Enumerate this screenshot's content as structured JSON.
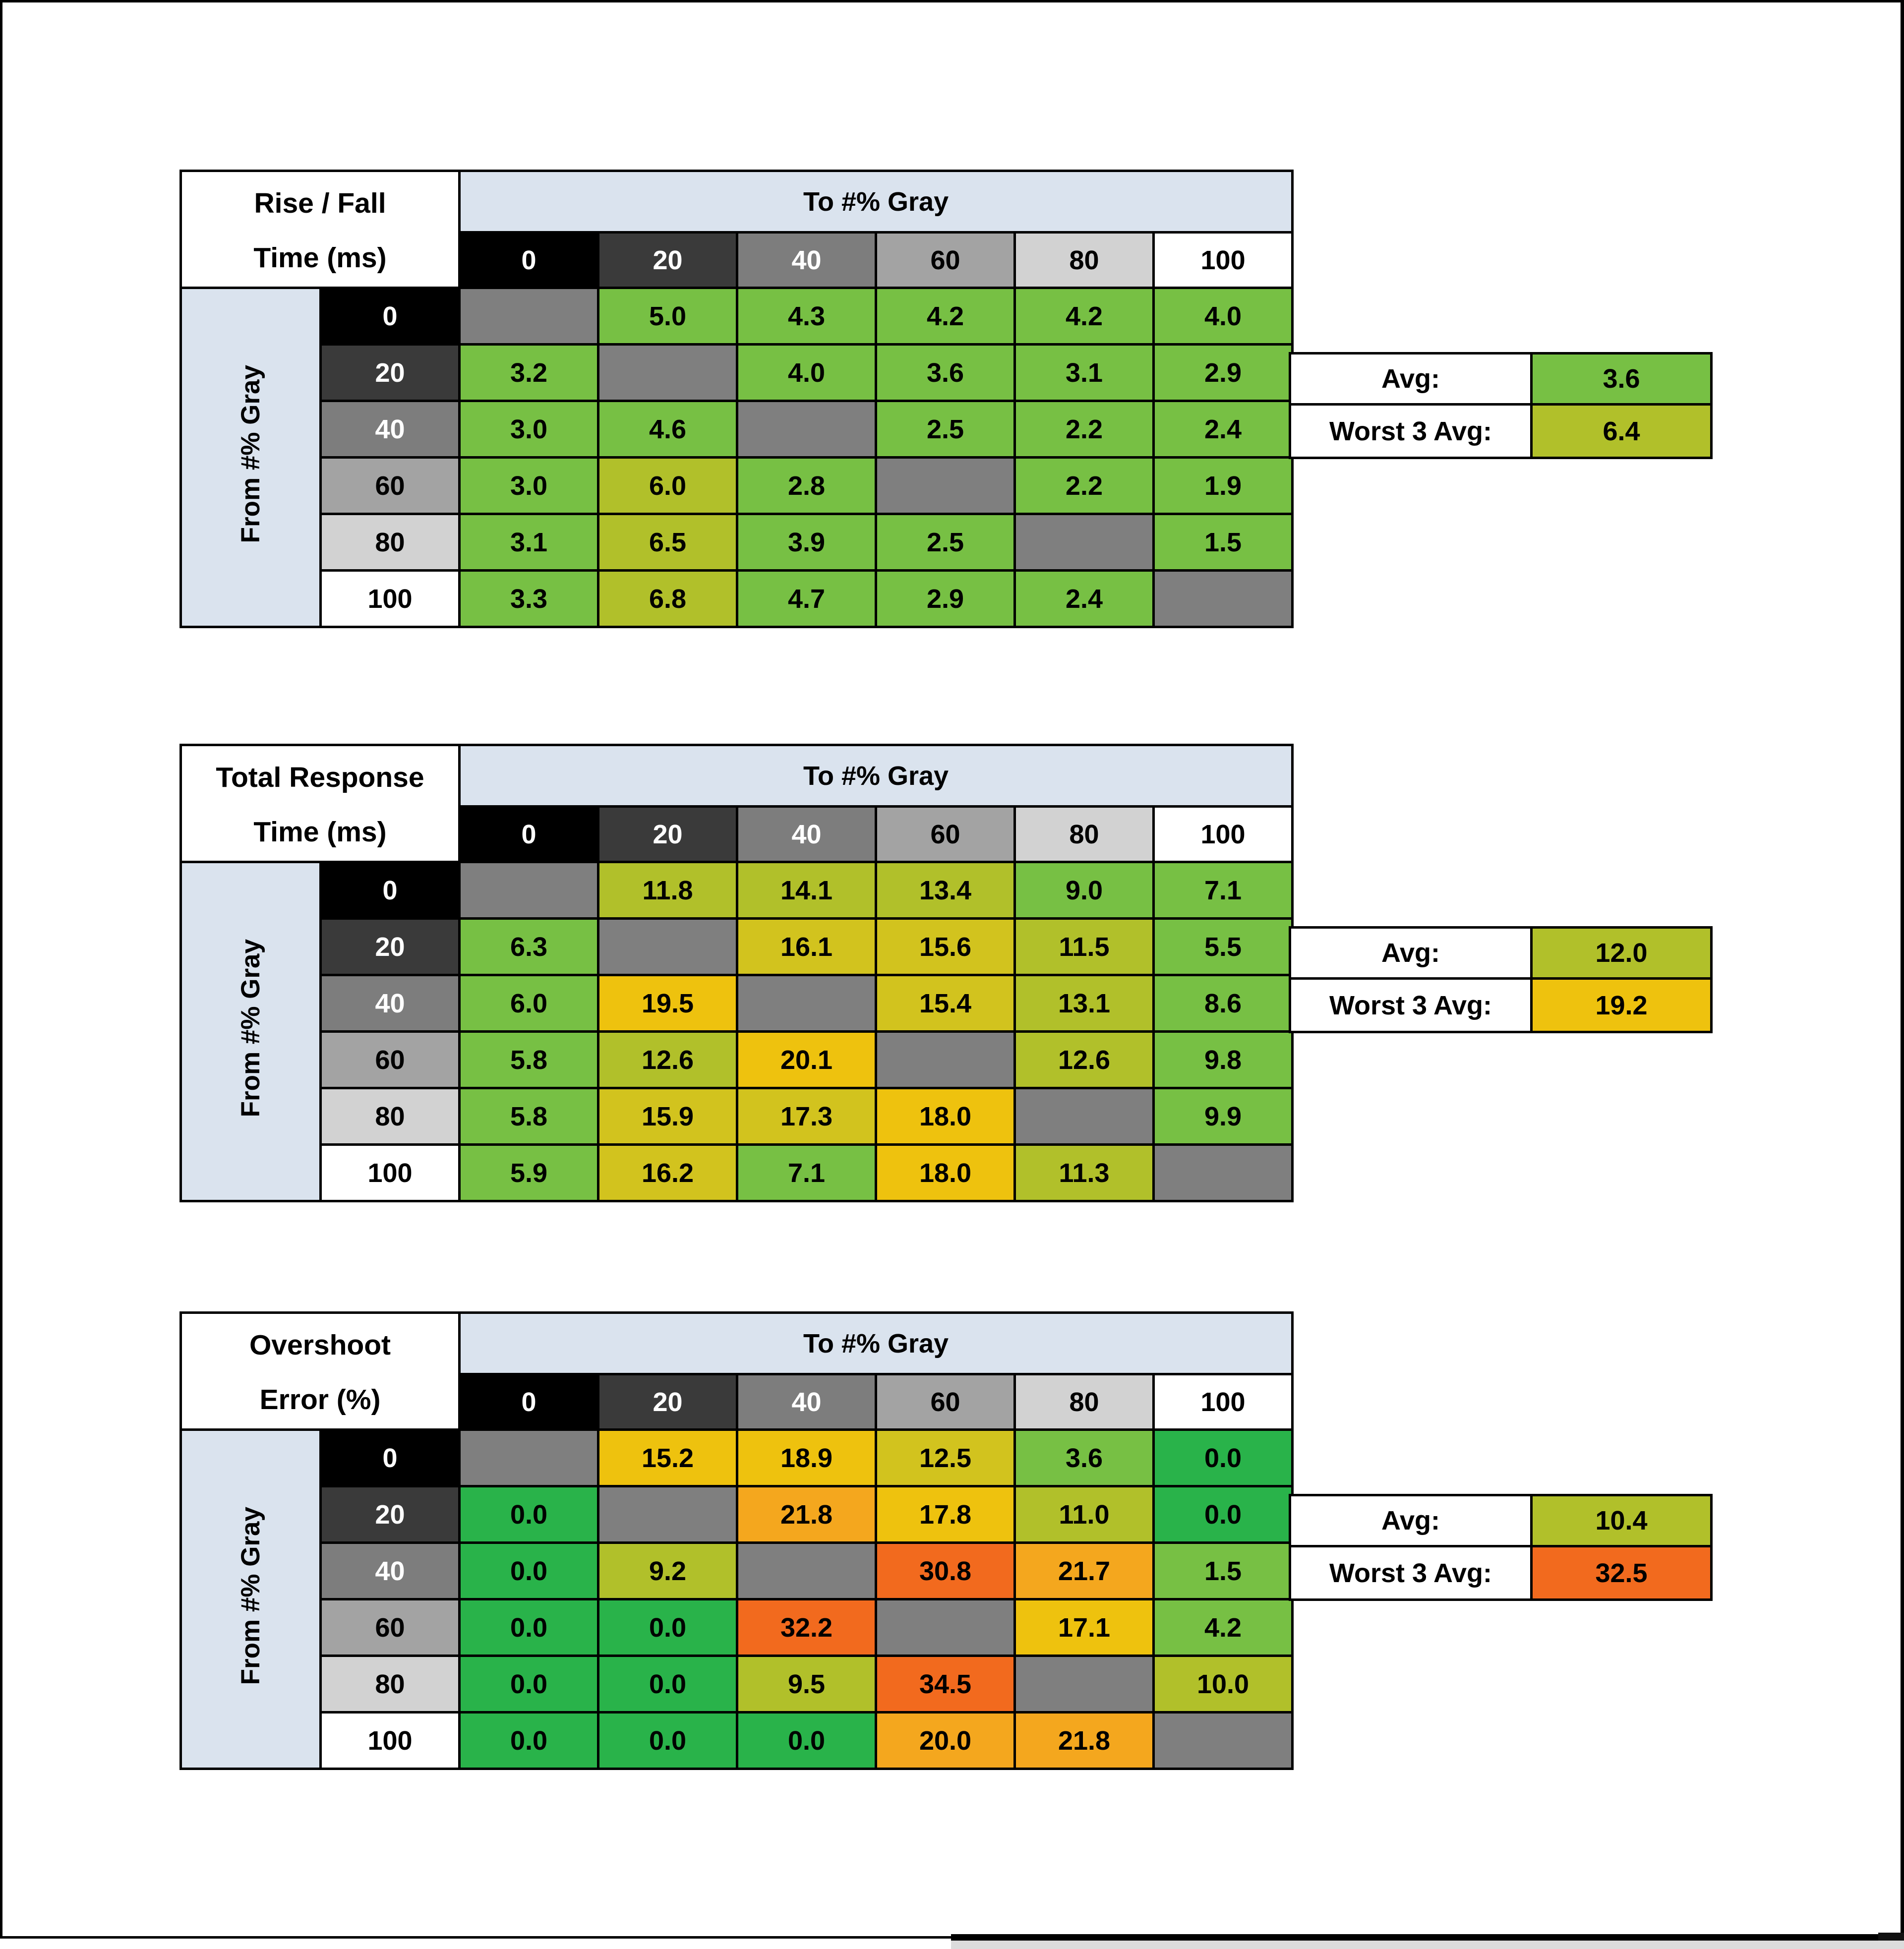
{
  "page": {
    "background": "#ffffff",
    "frame_border_color": "#000000"
  },
  "palette": {
    "bright_green": "#29b34a",
    "green": "#77c044",
    "yellow_green": "#b1c02a",
    "yellow": "#d2c31e",
    "gold": "#eec20e",
    "amber": "#f4a71e",
    "orange": "#f26a1e",
    "diagonal_gray": "#7f7f7f",
    "header_blue": "#dae3ee"
  },
  "gray_levels": [
    {
      "label": "0",
      "bg": "#000000",
      "fg": "#ffffff"
    },
    {
      "label": "20",
      "bg": "#3a3a3a",
      "fg": "#ffffff"
    },
    {
      "label": "40",
      "bg": "#7d7d7d",
      "fg": "#ffffff"
    },
    {
      "label": "60",
      "bg": "#a3a3a3",
      "fg": "#000000"
    },
    {
      "label": "80",
      "bg": "#d2d2d2",
      "fg": "#000000"
    },
    {
      "label": "100",
      "bg": "#ffffff",
      "fg": "#000000"
    }
  ],
  "chart_data": [
    {
      "type": "heatmap",
      "title": "Rise / Fall Time (ms)",
      "title_lines": [
        "Rise / Fall",
        "Time (ms)"
      ],
      "x_axis_label": "To #% Gray",
      "y_axis_label": "From #% Gray",
      "x_categories": [
        "0",
        "20",
        "40",
        "60",
        "80",
        "100"
      ],
      "y_categories": [
        "0",
        "20",
        "40",
        "60",
        "80",
        "100"
      ],
      "values": [
        [
          null,
          5.0,
          4.3,
          4.2,
          4.2,
          4.0
        ],
        [
          3.2,
          null,
          4.0,
          3.6,
          3.1,
          2.9
        ],
        [
          3.0,
          4.6,
          null,
          2.5,
          2.2,
          2.4
        ],
        [
          3.0,
          6.0,
          2.8,
          null,
          2.2,
          1.9
        ],
        [
          3.1,
          6.5,
          3.9,
          2.5,
          null,
          1.5
        ],
        [
          3.3,
          6.8,
          4.7,
          2.9,
          2.4,
          null
        ]
      ],
      "cell_colors": [
        [
          "diagonal_gray",
          "green",
          "green",
          "green",
          "green",
          "green"
        ],
        [
          "green",
          "diagonal_gray",
          "green",
          "green",
          "green",
          "green"
        ],
        [
          "green",
          "green",
          "diagonal_gray",
          "green",
          "green",
          "green"
        ],
        [
          "green",
          "yellow_green",
          "green",
          "diagonal_gray",
          "green",
          "green"
        ],
        [
          "green",
          "yellow_green",
          "green",
          "green",
          "diagonal_gray",
          "green"
        ],
        [
          "green",
          "yellow_green",
          "green",
          "green",
          "green",
          "diagonal_gray"
        ]
      ],
      "summary": {
        "avg_label": "Avg:",
        "avg_value": 3.6,
        "avg_color": "green",
        "worst_label": "Worst 3 Avg:",
        "worst_value": 6.4,
        "worst_color": "yellow_green"
      }
    },
    {
      "type": "heatmap",
      "title": "Total Response Time (ms)",
      "title_lines": [
        "Total Response",
        "Time (ms)"
      ],
      "x_axis_label": "To #% Gray",
      "y_axis_label": "From #% Gray",
      "x_categories": [
        "0",
        "20",
        "40",
        "60",
        "80",
        "100"
      ],
      "y_categories": [
        "0",
        "20",
        "40",
        "60",
        "80",
        "100"
      ],
      "values": [
        [
          null,
          11.8,
          14.1,
          13.4,
          9.0,
          7.1
        ],
        [
          6.3,
          null,
          16.1,
          15.6,
          11.5,
          5.5
        ],
        [
          6.0,
          19.5,
          null,
          15.4,
          13.1,
          8.6
        ],
        [
          5.8,
          12.6,
          20.1,
          null,
          12.6,
          9.8
        ],
        [
          5.8,
          15.9,
          17.3,
          18.0,
          null,
          9.9
        ],
        [
          5.9,
          16.2,
          7.1,
          18.0,
          11.3,
          null
        ]
      ],
      "cell_colors": [
        [
          "diagonal_gray",
          "yellow_green",
          "yellow_green",
          "yellow_green",
          "green",
          "green"
        ],
        [
          "green",
          "diagonal_gray",
          "yellow",
          "yellow",
          "yellow_green",
          "green"
        ],
        [
          "green",
          "gold",
          "diagonal_gray",
          "yellow",
          "yellow_green",
          "green"
        ],
        [
          "green",
          "yellow_green",
          "gold",
          "diagonal_gray",
          "yellow_green",
          "green"
        ],
        [
          "green",
          "yellow",
          "yellow",
          "gold",
          "diagonal_gray",
          "green"
        ],
        [
          "green",
          "yellow",
          "green",
          "gold",
          "yellow_green",
          "diagonal_gray"
        ]
      ],
      "summary": {
        "avg_label": "Avg:",
        "avg_value": 12.0,
        "avg_color": "yellow_green",
        "worst_label": "Worst 3 Avg:",
        "worst_value": 19.2,
        "worst_color": "gold"
      }
    },
    {
      "type": "heatmap",
      "title": "Overshoot Error (%)",
      "title_lines": [
        "Overshoot",
        "Error (%)"
      ],
      "x_axis_label": "To #% Gray",
      "y_axis_label": "From #% Gray",
      "x_categories": [
        "0",
        "20",
        "40",
        "60",
        "80",
        "100"
      ],
      "y_categories": [
        "0",
        "20",
        "40",
        "60",
        "80",
        "100"
      ],
      "values": [
        [
          null,
          15.2,
          18.9,
          12.5,
          3.6,
          0.0
        ],
        [
          0.0,
          null,
          21.8,
          17.8,
          11.0,
          0.0
        ],
        [
          0.0,
          9.2,
          null,
          30.8,
          21.7,
          1.5
        ],
        [
          0.0,
          0.0,
          32.2,
          null,
          17.1,
          4.2
        ],
        [
          0.0,
          0.0,
          9.5,
          34.5,
          null,
          10.0
        ],
        [
          0.0,
          0.0,
          0.0,
          20.0,
          21.8,
          null
        ]
      ],
      "cell_colors": [
        [
          "diagonal_gray",
          "gold",
          "gold",
          "yellow",
          "green",
          "bright_green"
        ],
        [
          "bright_green",
          "diagonal_gray",
          "amber",
          "gold",
          "yellow_green",
          "bright_green"
        ],
        [
          "bright_green",
          "yellow_green",
          "diagonal_gray",
          "orange",
          "amber",
          "green"
        ],
        [
          "bright_green",
          "bright_green",
          "orange",
          "diagonal_gray",
          "gold",
          "green"
        ],
        [
          "bright_green",
          "bright_green",
          "yellow_green",
          "orange",
          "diagonal_gray",
          "yellow_green"
        ],
        [
          "bright_green",
          "bright_green",
          "bright_green",
          "amber",
          "amber",
          "diagonal_gray"
        ]
      ],
      "summary": {
        "avg_label": "Avg:",
        "avg_value": 10.4,
        "avg_color": "yellow_green",
        "worst_label": "Worst 3 Avg:",
        "worst_value": 32.5,
        "worst_color": "orange"
      }
    }
  ]
}
